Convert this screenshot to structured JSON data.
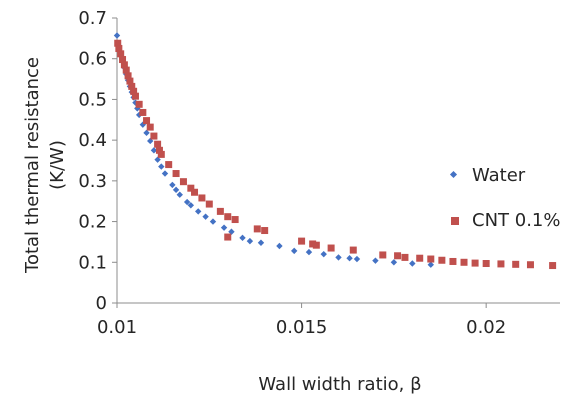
{
  "chart_data": {
    "type": "scatter",
    "xlabel": "Wall width ratio, β",
    "ylabel_line1": "Total thermal resistance",
    "ylabel_line2": "(K/W)",
    "xlim": [
      0.01,
      0.022
    ],
    "ylim": [
      0,
      0.7
    ],
    "x_ticks": [
      0.01,
      0.015,
      0.02
    ],
    "x_tick_labels": [
      "0.01",
      "0.015",
      "0.02"
    ],
    "y_ticks": [
      0,
      0.1,
      0.2,
      0.3,
      0.4,
      0.5,
      0.6,
      0.7
    ],
    "y_tick_labels": [
      "0",
      "0.1",
      "0.2",
      "0.3",
      "0.4",
      "0.5",
      "0.6",
      "0.7"
    ],
    "grid": false,
    "legend_position": "right",
    "series": [
      {
        "name": "Water",
        "marker": "diamond",
        "color": "#4472C4",
        "points": [
          [
            0.01,
            0.657
          ],
          [
            0.01005,
            0.632
          ],
          [
            0.0101,
            0.61
          ],
          [
            0.01015,
            0.593
          ],
          [
            0.0102,
            0.578
          ],
          [
            0.01025,
            0.562
          ],
          [
            0.0103,
            0.547
          ],
          [
            0.01035,
            0.532
          ],
          [
            0.0104,
            0.518
          ],
          [
            0.01045,
            0.505
          ],
          [
            0.0105,
            0.492
          ],
          [
            0.01055,
            0.478
          ],
          [
            0.0106,
            0.462
          ],
          [
            0.0107,
            0.438
          ],
          [
            0.0108,
            0.418
          ],
          [
            0.0109,
            0.398
          ],
          [
            0.011,
            0.375
          ],
          [
            0.0111,
            0.352
          ],
          [
            0.0112,
            0.335
          ],
          [
            0.0113,
            0.318
          ],
          [
            0.0115,
            0.29
          ],
          [
            0.0116,
            0.278
          ],
          [
            0.0117,
            0.266
          ],
          [
            0.0119,
            0.248
          ],
          [
            0.012,
            0.24
          ],
          [
            0.0122,
            0.225
          ],
          [
            0.0124,
            0.212
          ],
          [
            0.0126,
            0.2
          ],
          [
            0.0129,
            0.185
          ],
          [
            0.0131,
            0.175
          ],
          [
            0.0134,
            0.16
          ],
          [
            0.0136,
            0.152
          ],
          [
            0.0139,
            0.148
          ],
          [
            0.0144,
            0.14
          ],
          [
            0.0148,
            0.128
          ],
          [
            0.0152,
            0.125
          ],
          [
            0.0156,
            0.12
          ],
          [
            0.016,
            0.112
          ],
          [
            0.0163,
            0.11
          ],
          [
            0.0165,
            0.108
          ],
          [
            0.017,
            0.104
          ],
          [
            0.0175,
            0.1
          ],
          [
            0.018,
            0.097
          ],
          [
            0.0185,
            0.094
          ]
        ]
      },
      {
        "name": "CNT 0.1%",
        "marker": "square",
        "color": "#C0504D",
        "points": [
          [
            0.01002,
            0.638
          ],
          [
            0.01005,
            0.625
          ],
          [
            0.0101,
            0.612
          ],
          [
            0.01015,
            0.598
          ],
          [
            0.0102,
            0.585
          ],
          [
            0.01025,
            0.572
          ],
          [
            0.0103,
            0.558
          ],
          [
            0.01035,
            0.545
          ],
          [
            0.0104,
            0.532
          ],
          [
            0.01045,
            0.52
          ],
          [
            0.0105,
            0.508
          ],
          [
            0.0106,
            0.488
          ],
          [
            0.0107,
            0.468
          ],
          [
            0.0108,
            0.448
          ],
          [
            0.0109,
            0.432
          ],
          [
            0.011,
            0.41
          ],
          [
            0.0111,
            0.39
          ],
          [
            0.01115,
            0.375
          ],
          [
            0.0112,
            0.365
          ],
          [
            0.0114,
            0.34
          ],
          [
            0.0116,
            0.318
          ],
          [
            0.0118,
            0.298
          ],
          [
            0.012,
            0.282
          ],
          [
            0.0121,
            0.272
          ],
          [
            0.0123,
            0.258
          ],
          [
            0.0125,
            0.243
          ],
          [
            0.0128,
            0.225
          ],
          [
            0.013,
            0.212
          ],
          [
            0.0132,
            0.205
          ],
          [
            0.0138,
            0.182
          ],
          [
            0.014,
            0.178
          ],
          [
            0.013,
            0.162
          ],
          [
            0.015,
            0.152
          ],
          [
            0.0153,
            0.145
          ],
          [
            0.0154,
            0.142
          ],
          [
            0.0158,
            0.135
          ],
          [
            0.0164,
            0.13
          ],
          [
            0.0172,
            0.118
          ],
          [
            0.0176,
            0.116
          ],
          [
            0.0178,
            0.112
          ],
          [
            0.0182,
            0.11
          ],
          [
            0.0185,
            0.108
          ],
          [
            0.0188,
            0.105
          ],
          [
            0.0191,
            0.102
          ],
          [
            0.0194,
            0.1
          ],
          [
            0.0197,
            0.098
          ],
          [
            0.02,
            0.097
          ],
          [
            0.0204,
            0.096
          ],
          [
            0.0208,
            0.095
          ],
          [
            0.0212,
            0.094
          ],
          [
            0.0218,
            0.092
          ]
        ]
      }
    ]
  }
}
